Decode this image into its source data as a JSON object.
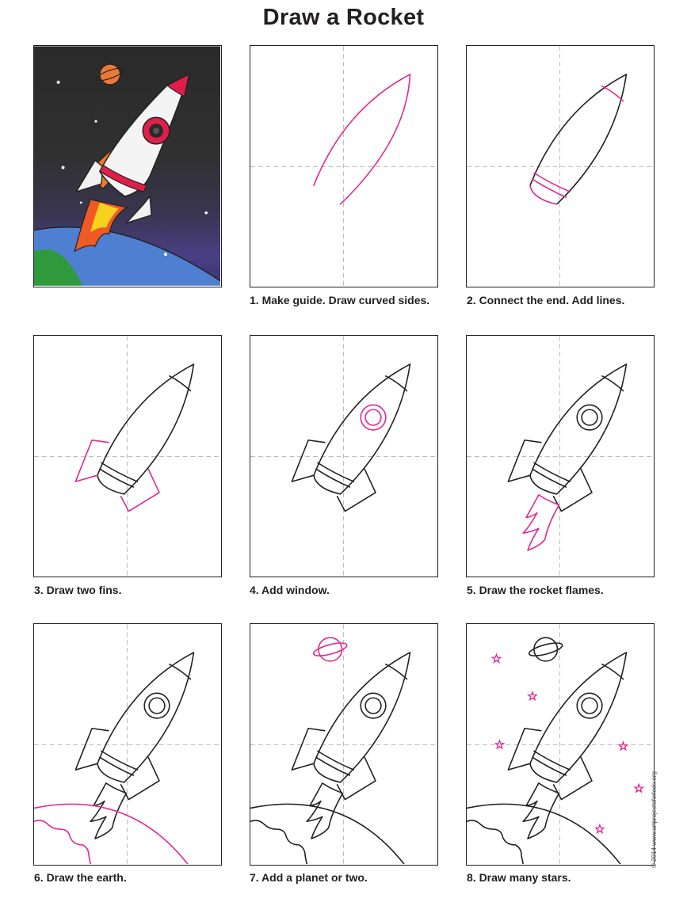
{
  "title": "Draw a Rocket",
  "colors": {
    "ink": "#231f20",
    "highlight": "#e2268f",
    "guide": "#bdbdbd"
  },
  "steps": [
    {
      "label": "1. Make guide. Draw curved sides."
    },
    {
      "label": "2. Connect the end. Add lines."
    },
    {
      "label": "3. Draw two fins."
    },
    {
      "label": "4. Add window."
    },
    {
      "label": "5. Draw the rocket flames."
    },
    {
      "label": "6. Draw the earth."
    },
    {
      "label": "7. Add a planet or two."
    },
    {
      "label": "8. Draw many stars."
    }
  ],
  "credit": "© 2014 www.artprojectsforkids.org"
}
